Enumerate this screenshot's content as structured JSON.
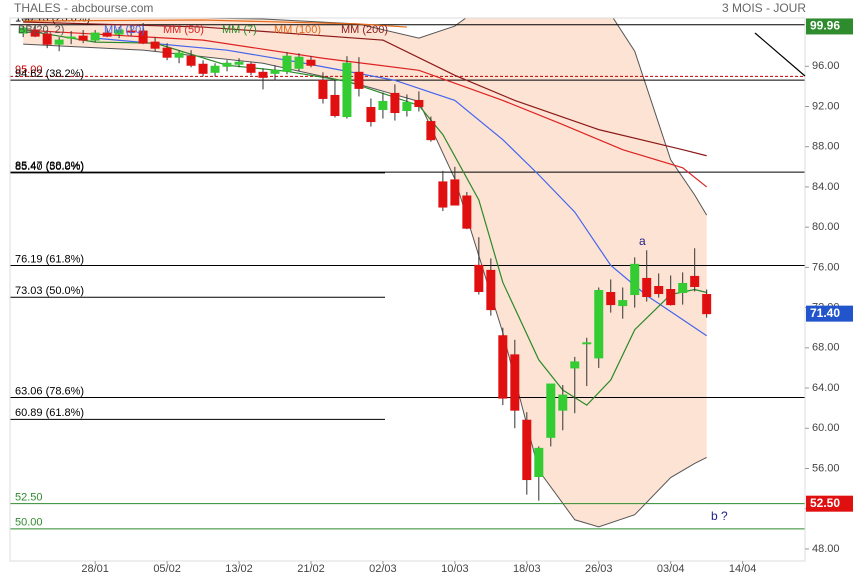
{
  "chart_data": {
    "type": "candlestick",
    "title": "THALES - abcbourse.com",
    "subtitle": "3 MOIS - JOUR",
    "xlim": [
      -1.1,
      65.2
    ],
    "ylim": [
      46.8,
      100.8
    ],
    "xticks": [
      {
        "value": 6,
        "label": "28/01"
      },
      {
        "value": 12,
        "label": "05/02"
      },
      {
        "value": 18,
        "label": "13/02"
      },
      {
        "value": 24,
        "label": "21/02"
      },
      {
        "value": 30,
        "label": "02/03"
      },
      {
        "value": 36,
        "label": "10/03"
      },
      {
        "value": 42,
        "label": "18/03"
      },
      {
        "value": 48,
        "label": "26/03"
      },
      {
        "value": 54,
        "label": "03/04"
      },
      {
        "value": 60,
        "label": "14/04"
      }
    ],
    "yticks": [
      {
        "value": 48,
        "label": "48.00"
      },
      {
        "value": 52,
        "label": "52.00"
      },
      {
        "value": 56,
        "label": "56.00"
      },
      {
        "value": 60,
        "label": "60.00"
      },
      {
        "value": 64,
        "label": "64.00"
      },
      {
        "value": 68,
        "label": "68.00"
      },
      {
        "value": 72,
        "label": "72.00"
      },
      {
        "value": 76,
        "label": "76.00"
      },
      {
        "value": 80,
        "label": "80.00"
      },
      {
        "value": 84,
        "label": "84.00"
      },
      {
        "value": 88,
        "label": "88.00"
      },
      {
        "value": 92,
        "label": "92.00"
      },
      {
        "value": 96,
        "label": "96.00"
      }
    ],
    "candles": {
      "up_color": "#33cc33",
      "down_color": "#e01010",
      "open": [
        99.3,
        99.6,
        99.2,
        98.2,
        98.8,
        99.0,
        98.6,
        99.3,
        99.2,
        99.5,
        99.5,
        98.4,
        97.8,
        96.9,
        97.0,
        96.2,
        95.4,
        96.0,
        96.2,
        96.2,
        95.4,
        95.3,
        95.5,
        95.8,
        96.6,
        94.6,
        93.1,
        91.0,
        95.4,
        91.9,
        91.7,
        93.3,
        91.6,
        92.6,
        90.5,
        84.5,
        84.7,
        83.1,
        76.2,
        75.7,
        69.2,
        67.3,
        60.8,
        55.2,
        59.1,
        61.8,
        66.0,
        68.4,
        67.0,
        73.5,
        72.2,
        73.3,
        74.9,
        74.1,
        73.8,
        73.5,
        75.1,
        73.3
      ],
      "high": [
        100.0,
        100.1,
        99.6,
        98.9,
        99.5,
        99.6,
        99.6,
        99.8,
        99.9,
        100.1,
        100.3,
        98.9,
        98.3,
        97.6,
        97.6,
        96.6,
        96.3,
        96.6,
        96.8,
        96.4,
        95.8,
        96.1,
        97.4,
        97.3,
        97.0,
        95.4,
        94.6,
        97.0,
        96.9,
        92.8,
        93.4,
        94.2,
        93.2,
        93.5,
        91.0,
        85.6,
        86.0,
        83.5,
        79.0,
        76.9,
        70.0,
        68.8,
        61.6,
        58.2,
        64.4,
        64.3,
        67.1,
        69.0,
        74.0,
        74.8,
        74.0,
        77.0,
        77.7,
        75.4,
        75.2,
        75.5,
        77.9,
        73.8
      ],
      "low": [
        98.9,
        98.9,
        97.8,
        97.5,
        98.2,
        98.3,
        98.4,
        98.9,
        98.8,
        99.0,
        98.2,
        97.5,
        96.6,
        96.3,
        95.9,
        95.0,
        95.0,
        95.5,
        95.9,
        95.1,
        93.7,
        94.6,
        95.2,
        95.5,
        95.9,
        92.3,
        90.9,
        90.8,
        93.0,
        90.0,
        90.8,
        90.6,
        91.0,
        91.5,
        88.5,
        81.6,
        82.2,
        79.8,
        73.3,
        71.2,
        62.3,
        60.0,
        53.4,
        52.8,
        58.2,
        59.8,
        61.5,
        64.2,
        66.0,
        71.5,
        70.9,
        72.0,
        72.6,
        73.0,
        72.2,
        72.3,
        73.6,
        71.0
      ],
      "close": [
        99.8,
        99.0,
        98.2,
        98.6,
        98.9,
        98.6,
        99.3,
        99.0,
        99.6,
        99.4,
        98.3,
        97.8,
        96.9,
        97.3,
        96.1,
        95.3,
        96.0,
        96.3,
        96.4,
        95.4,
        94.9,
        95.6,
        97.0,
        96.9,
        96.1,
        92.8,
        91.1,
        96.3,
        93.8,
        90.5,
        92.5,
        91.4,
        92.4,
        92.0,
        88.7,
        82.0,
        82.2,
        79.9,
        73.6,
        71.8,
        63.0,
        61.8,
        54.9,
        58.0,
        64.4,
        63.3,
        66.6,
        68.5,
        73.7,
        72.3,
        72.7,
        76.3,
        73.1,
        73.4,
        72.3,
        74.4,
        74.1,
        71.4
      ]
    },
    "bollinger": {
      "name": "BB(20, 2)",
      "color": "#555555",
      "fill": "#fde3d3",
      "x": [
        0,
        10,
        20,
        28,
        33,
        36,
        40,
        43,
        46,
        48,
        51,
        54,
        56,
        57
      ],
      "upper": [
        100.7,
        100.9,
        100.7,
        100.2,
        98.8,
        100.0,
        103.5,
        105,
        105,
        103,
        97.5,
        86.7,
        83.2,
        81.2
      ],
      "lower": [
        98.2,
        97.6,
        96.3,
        94.2,
        92.5,
        84.8,
        69.5,
        55.8,
        50.9,
        50.2,
        51.4,
        55.1,
        56.5,
        57.1
      ]
    },
    "series": [
      {
        "name": "MM (20)",
        "color": "#4466ee",
        "x": [
          6,
          17,
          23,
          31,
          36,
          40,
          43,
          46,
          49,
          52,
          55,
          57
        ],
        "values": [
          98.8,
          97.6,
          96.4,
          94.6,
          92.6,
          88.7,
          85.2,
          81.5,
          76.2,
          73.2,
          70.8,
          69.2
        ]
      },
      {
        "name": "MM (50)",
        "color": "#dd2222",
        "x": [
          0,
          15,
          25,
          33,
          40,
          45,
          50,
          55,
          57
        ],
        "values": [
          99.6,
          98.6,
          96.8,
          95.6,
          92.6,
          90.2,
          87.7,
          85.9,
          84.0
        ]
      },
      {
        "name": "MM (7)",
        "color": "#2a8a2a",
        "x": [
          0,
          6,
          11,
          17,
          22,
          27,
          33,
          35,
          38,
          40,
          43,
          45,
          47,
          49,
          51,
          54,
          56,
          57
        ],
        "values": [
          99.6,
          98.4,
          98.3,
          96.1,
          95.5,
          94.5,
          92.1,
          89.2,
          82.7,
          74.5,
          66.8,
          63.8,
          62.3,
          64.8,
          69.8,
          73.3,
          73.8,
          73.5
        ]
      },
      {
        "name": "MM (100)",
        "color": "#e66a1a",
        "x": [
          0,
          15,
          28,
          32
        ],
        "values": [
          100.5,
          100.6,
          100.2,
          99.9
        ]
      },
      {
        "name": "MM (200)",
        "color": "#8b1a1a",
        "x": [
          0,
          15,
          30,
          36,
          41,
          48,
          55,
          57
        ],
        "values": [
          100.4,
          99.9,
          98.6,
          95.1,
          92.6,
          89.7,
          87.7,
          87.1
        ]
      }
    ],
    "levels": [
      {
        "value": 100.13,
        "label": "100.13 (23.6%)",
        "color": "#000000",
        "extent": "full"
      },
      {
        "value": 95,
        "label": "95.00",
        "color": "#c00000",
        "extent": "full",
        "dashed": true
      },
      {
        "value": 94.62,
        "label": "94.62 (38.2%)",
        "color": "#000000",
        "extent": "full"
      },
      {
        "value": 85.47,
        "label": "85.47 (38.2%)",
        "color": "#000000",
        "extent": "full"
      },
      {
        "value": 85.4,
        "label": "85.40 (50.0%)",
        "color": "#000000",
        "extent": "short"
      },
      {
        "value": 76.19,
        "label": "76.19 (61.8%)",
        "color": "#000000",
        "extent": "full"
      },
      {
        "value": 73.03,
        "label": "73.03 (50.0%)",
        "color": "#000000",
        "extent": "short"
      },
      {
        "value": 63.06,
        "label": "63.06 (78.6%)",
        "color": "#000000",
        "extent": "full"
      },
      {
        "value": 60.89,
        "label": "60.89 (61.8%)",
        "color": "#000000",
        "extent": "short"
      },
      {
        "value": 52.5,
        "label": "52.50",
        "color": "#2e8b2e",
        "extent": "full"
      },
      {
        "value": 50,
        "label": "50.00",
        "color": "#2e8b2e",
        "extent": "full"
      }
    ],
    "price_tags": [
      {
        "value": 99.96,
        "label": "99.96",
        "color": "#2e8b2e"
      },
      {
        "value": 71.4,
        "label": "71.40",
        "color": "#2255cc"
      },
      {
        "value": 52.5,
        "label": "52.50",
        "color": "#e01010"
      }
    ],
    "annotations": [
      "a",
      "b ?"
    ]
  }
}
